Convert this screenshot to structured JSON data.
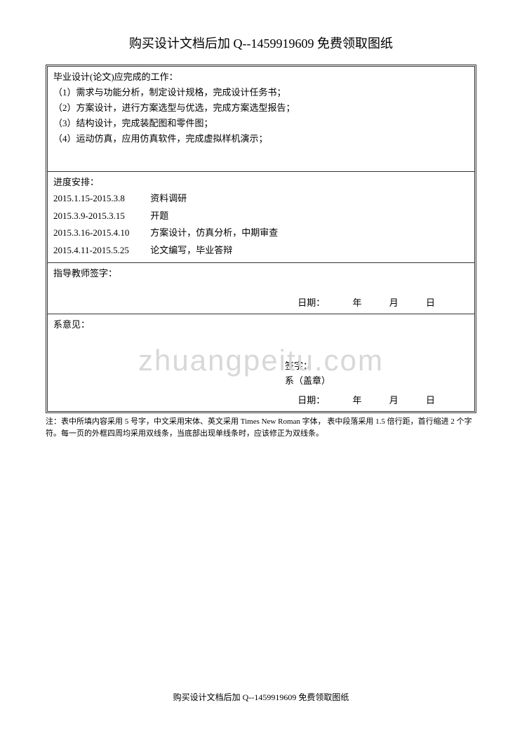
{
  "header": {
    "text": "购买设计文档后加 Q--1459919609 免费领取图纸"
  },
  "tasks": {
    "title": "毕业设计(论文)应完成的工作：",
    "items": [
      "（1）需求与功能分析，制定设计规格，完成设计任务书；",
      "（2）方案设计，进行方案选型与优选，完成方案选型报告；",
      "（3）结构设计，完成装配图和零件图；",
      "（4）运动仿真，应用仿真软件，完成虚拟样机演示；"
    ]
  },
  "schedule": {
    "title": "进度安排：",
    "rows": [
      {
        "date": "2015.1.15-2015.3.8",
        "task": "资料调研"
      },
      {
        "date": "2015.3.9-2015.3.15",
        "task": "开题"
      },
      {
        "date": "2015.3.16-2015.4.10",
        "task": "方案设计，仿真分析，中期审查"
      },
      {
        "date": "2015.4.11-2015.5.25",
        "task": "论文编写，毕业答辩"
      }
    ]
  },
  "teacher": {
    "label": "指导教师签字：",
    "date_label": "日期：",
    "year": "年",
    "month": "月",
    "day": "日"
  },
  "department": {
    "label": "系意见：",
    "signature_label": "签字：",
    "stamp_label": "系（盖章）",
    "date_label": "日期：",
    "year": "年",
    "month": "月",
    "day": "日"
  },
  "footnote": {
    "text": "注：表中所填内容采用 5 号字，中文采用宋体、英文采用 Times New Roman 字体，  表中段落采用 1.5 倍行距，首行缩进 2 个字符。每一页的外框四周均采用双线条，当底部出现单线条时，应该修正为双线条。"
  },
  "watermark": {
    "text": "zhuangpeitu.com"
  },
  "footer": {
    "text": "购买设计文档后加 Q--1459919609 免费领取图纸"
  },
  "colors": {
    "text": "#000000",
    "border": "#333333",
    "watermark": "#d8d8d8",
    "background": "#ffffff"
  }
}
